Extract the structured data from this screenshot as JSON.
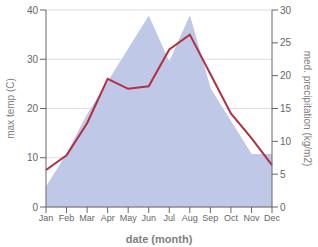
{
  "chart_data": {
    "type": "line",
    "categories": [
      "Jan",
      "Feb",
      "Mar",
      "Apr",
      "May",
      "Jun",
      "Jul",
      "Aug",
      "Sep",
      "Oct",
      "Nov",
      "Dec"
    ],
    "xlabel": "date (month)",
    "ylabel": "max temp (C)",
    "y2label": "med. precipitation (kg/m2)",
    "series": [
      {
        "type": "area",
        "color": "#c0c8e8",
        "axis": "y2",
        "values": [
          3.0,
          8.0,
          14.0,
          19.0,
          24.0,
          29.0,
          22.0,
          29.0,
          18.0,
          13.0,
          8.0,
          8.0
        ]
      },
      {
        "type": "line",
        "color": "#b03040",
        "values": [
          7.5,
          10.5,
          17.0,
          26.0,
          24.0,
          24.5,
          32.0,
          35.0,
          27.0,
          19.0,
          14.0,
          8.5
        ]
      }
    ],
    "ylim": [
      0,
      40
    ],
    "yticks": [
      0,
      10,
      20,
      30,
      40
    ],
    "y2lim": [
      0,
      30
    ],
    "y2ticks": [
      0,
      5,
      10,
      15,
      20,
      25,
      30
    ],
    "grid": true
  }
}
